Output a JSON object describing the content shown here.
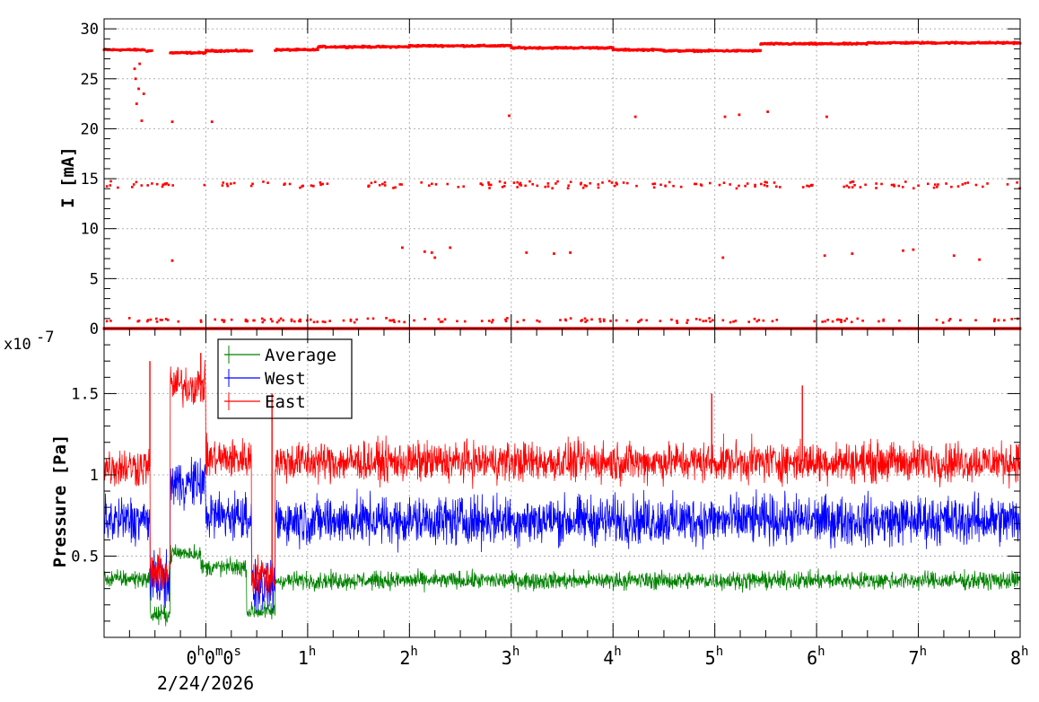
{
  "chart_data": [
    {
      "type": "scatter",
      "ylabel": "I [mA]",
      "ylim": [
        0,
        31
      ],
      "yticks": [
        0,
        5,
        10,
        15,
        20,
        25,
        30
      ],
      "xlim_h": [
        -1.0,
        8.0
      ],
      "xticks_h": [
        0,
        1,
        2,
        3,
        4,
        5,
        6,
        7,
        8
      ],
      "grid": true,
      "color": "#ff0000",
      "series": [
        {
          "segments": [
            {
              "x": [
                -1.0,
                -0.6
              ],
              "y": 27.9
            },
            {
              "x": [
                -0.58,
                -0.53
              ],
              "y": 27.8
            },
            {
              "x": [
                -0.35,
                0.0
              ],
              "y": 27.6
            },
            {
              "x": [
                0.0,
                0.45
              ],
              "y": 27.8
            },
            {
              "x": [
                0.68,
                1.1
              ],
              "y": 27.9
            },
            {
              "x": [
                1.1,
                2.0
              ],
              "y": 28.2
            },
            {
              "x": [
                2.0,
                3.0
              ],
              "y": 28.3
            },
            {
              "x": [
                3.0,
                4.0
              ],
              "y": 28.1
            },
            {
              "x": [
                4.0,
                4.5
              ],
              "y": 27.9
            },
            {
              "x": [
                4.5,
                5.45
              ],
              "y": 27.8
            },
            {
              "x": [
                5.45,
                6.5
              ],
              "y": 28.5
            },
            {
              "x": [
                6.5,
                8.0
              ],
              "y": 28.6
            }
          ],
          "dips": [
            {
              "x": -0.7,
              "y": 26.0
            },
            {
              "x": -0.69,
              "y": 25.0
            },
            {
              "x": -0.68,
              "y": 22.5
            },
            {
              "x": -0.66,
              "y": 24.0
            },
            {
              "x": -0.65,
              "y": 26.5
            },
            {
              "x": -0.63,
              "y": 20.8
            },
            {
              "x": -0.61,
              "y": 23.5
            },
            {
              "x": -0.33,
              "y": 20.7
            },
            {
              "x": 0.06,
              "y": 20.7
            },
            {
              "x": 2.98,
              "y": 21.3
            },
            {
              "x": 4.22,
              "y": 21.2
            },
            {
              "x": 5.1,
              "y": 21.2
            },
            {
              "x": 5.24,
              "y": 21.4
            },
            {
              "x": 5.52,
              "y": 21.7
            },
            {
              "x": 6.1,
              "y": 21.2
            },
            {
              "x": -0.33,
              "y": 6.8
            },
            {
              "x": 1.93,
              "y": 8.1
            },
            {
              "x": 2.15,
              "y": 7.7
            },
            {
              "x": 2.22,
              "y": 7.6
            },
            {
              "x": 2.4,
              "y": 8.1
            },
            {
              "x": 2.25,
              "y": 7.1
            },
            {
              "x": 3.15,
              "y": 7.6
            },
            {
              "x": 3.42,
              "y": 7.5
            },
            {
              "x": 3.58,
              "y": 7.6
            },
            {
              "x": 5.08,
              "y": 7.1
            },
            {
              "x": 6.08,
              "y": 7.3
            },
            {
              "x": 6.35,
              "y": 7.5
            },
            {
              "x": 6.85,
              "y": 7.8
            },
            {
              "x": 6.95,
              "y": 7.9
            },
            {
              "x": 7.35,
              "y": 7.3
            },
            {
              "x": 7.6,
              "y": 6.9
            }
          ]
        }
      ]
    },
    {
      "type": "line",
      "ylabel": "Pressure [Pa]",
      "multiplier": "x10",
      "multiplier_exp": "-7",
      "ylim": [
        0.0,
        1.9
      ],
      "yticks": [
        0.5,
        1,
        1.5
      ],
      "yticks_minor_step": 0.1,
      "xlim_h": [
        -1.0,
        8.0
      ],
      "xticks_h": [
        0,
        1,
        2,
        3,
        4,
        5,
        6,
        7,
        8
      ],
      "grid": true,
      "legend": "top-left",
      "series": [
        {
          "name": "Average",
          "color": "#008000",
          "baseline": 0.35,
          "noise": 0.08,
          "features": [
            {
              "x": [
                -1.0,
                -0.55
              ],
              "y": 0.36
            },
            {
              "x": [
                -0.55,
                -0.35
              ],
              "y": 0.14
            },
            {
              "x": [
                -0.35,
                -0.05
              ],
              "y": 0.52
            },
            {
              "x": [
                -0.05,
                0.4
              ],
              "y": 0.43
            },
            {
              "x": [
                0.4,
                0.68
              ],
              "y": 0.16
            },
            {
              "x": [
                0.68,
                8.0
              ],
              "y": 0.35
            }
          ]
        },
        {
          "name": "West",
          "color": "#0000ff",
          "baseline": 0.72,
          "noise": 0.22,
          "features": [
            {
              "x": [
                -1.0,
                -0.55
              ],
              "y": 0.72
            },
            {
              "x": [
                -0.55,
                -0.35
              ],
              "y": 0.35
            },
            {
              "x": [
                -0.35,
                0.0
              ],
              "y": 0.95
            },
            {
              "x": [
                0.0,
                0.45
              ],
              "y": 0.75
            },
            {
              "x": [
                0.45,
                0.68
              ],
              "y": 0.3
            },
            {
              "x": [
                0.68,
                8.0
              ],
              "y": 0.72
            }
          ]
        },
        {
          "name": "East",
          "color": "#ff0000",
          "baseline": 1.08,
          "noise": 0.18,
          "features": [
            {
              "x": [
                -1.0,
                -0.55
              ],
              "y": 1.05
            },
            {
              "x": [
                -0.55,
                -0.35
              ],
              "y": 0.4
            },
            {
              "x": [
                -0.35,
                0.0
              ],
              "y": 1.55
            },
            {
              "x": [
                0.0,
                0.45
              ],
              "y": 1.1
            },
            {
              "x": [
                0.45,
                0.68
              ],
              "y": 0.38
            },
            {
              "x": [
                0.68,
                8.0
              ],
              "y": 1.08
            }
          ],
          "spikes": [
            {
              "x": 4.97,
              "y": 1.5
            },
            {
              "x": 5.86,
              "y": 1.55
            },
            {
              "x": -0.55,
              "y": 1.7
            },
            {
              "x": -0.05,
              "y": 1.75
            },
            {
              "x": 0.65,
              "y": 1.5
            }
          ]
        }
      ]
    }
  ],
  "x_axis": {
    "tick_labels": [
      {
        "h": 0,
        "text": "0",
        "sup": "h",
        "text2": "0",
        "sup2": "m",
        "text3": "0",
        "sup3": "s"
      },
      {
        "h": 1,
        "text": "1",
        "sup": "h"
      },
      {
        "h": 2,
        "text": "2",
        "sup": "h"
      },
      {
        "h": 3,
        "text": "3",
        "sup": "h"
      },
      {
        "h": 4,
        "text": "4",
        "sup": "h"
      },
      {
        "h": 5,
        "text": "5",
        "sup": "h"
      },
      {
        "h": 6,
        "text": "6",
        "sup": "h"
      },
      {
        "h": 7,
        "text": "7",
        "sup": "h"
      },
      {
        "h": 8,
        "text": "8",
        "sup": "h"
      }
    ],
    "date": "2/24/2026"
  }
}
